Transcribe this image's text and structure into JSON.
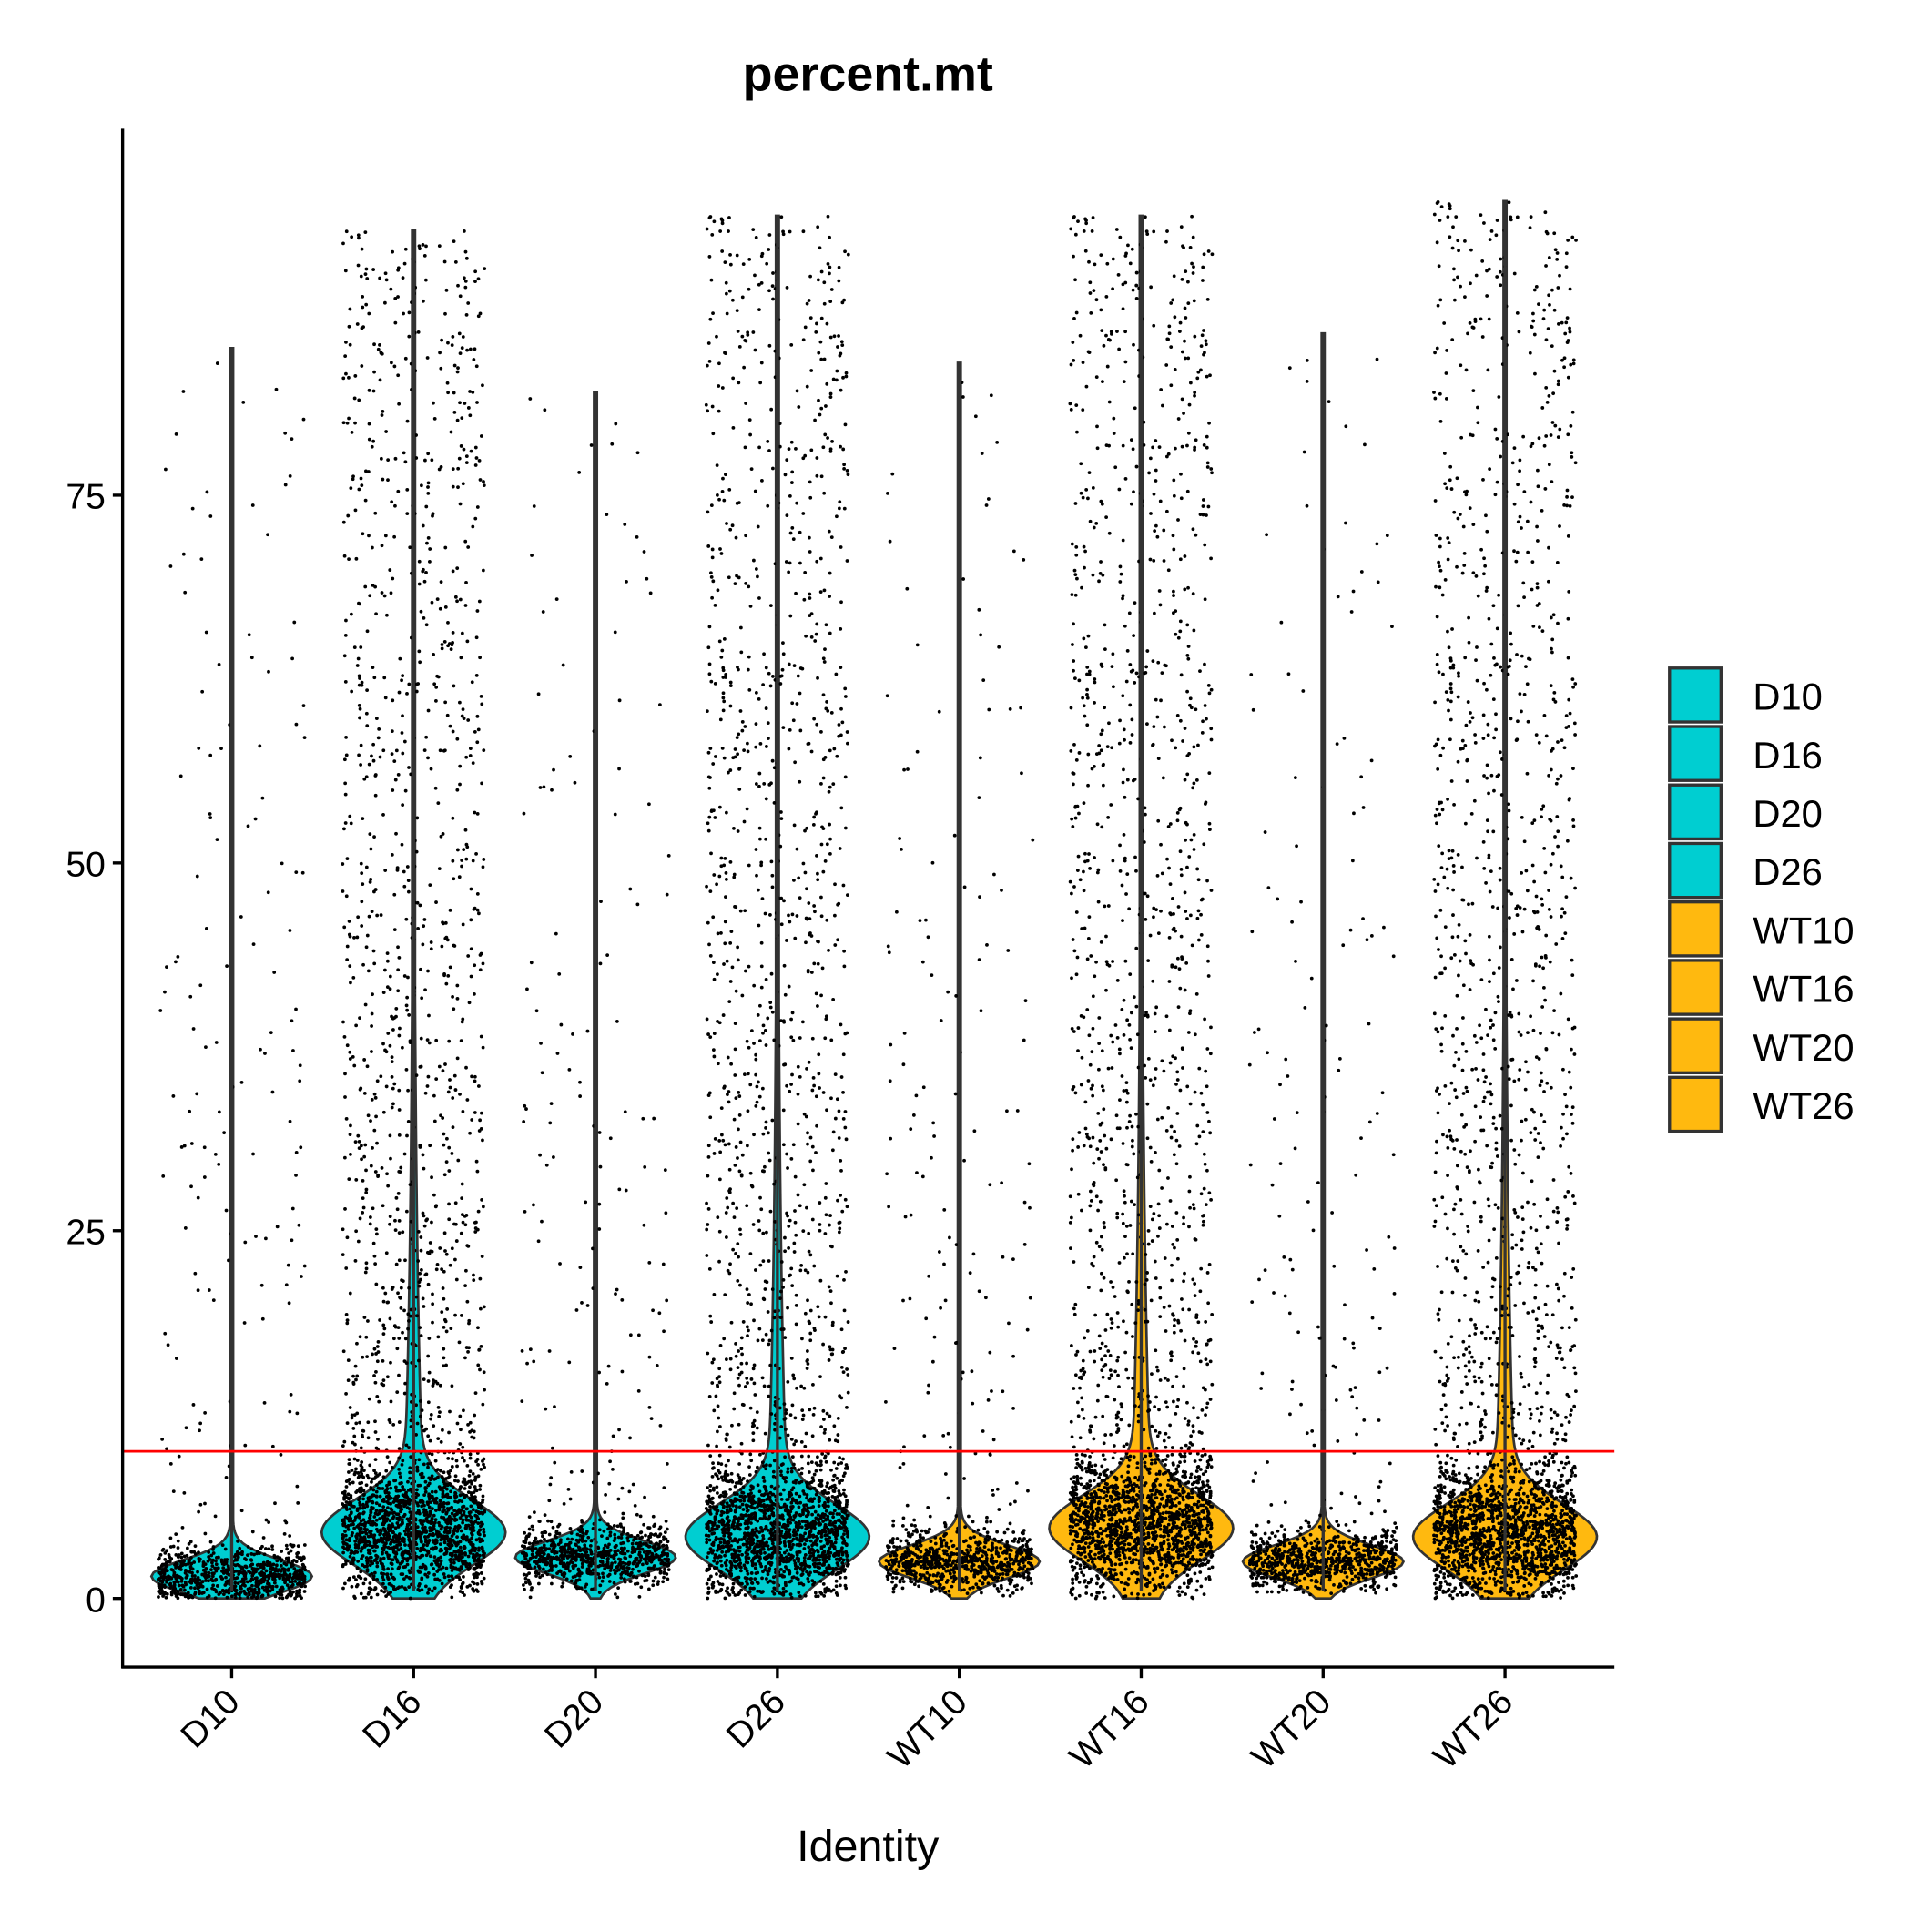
{
  "chart_data": {
    "type": "violin",
    "title": "percent.mt",
    "xlabel": "Identity",
    "ylabel": "",
    "ylim": [
      -4.7,
      100
    ],
    "yticks": [
      0,
      25,
      50,
      75
    ],
    "ytick_labels": [
      "0",
      "25",
      "50",
      "75"
    ],
    "categories": [
      "D10",
      "D16",
      "D20",
      "D26",
      "WT10",
      "WT16",
      "WT20",
      "WT26"
    ],
    "group_color": [
      "#00CED1",
      "#00CED1",
      "#00CED1",
      "#00CED1",
      "#FFB90F",
      "#FFB90F",
      "#FFB90F",
      "#FFB90F"
    ],
    "median": [
      1.5,
      4.5,
      2.8,
      4.2,
      2.5,
      4.8,
      2.5,
      4.2
    ],
    "max": [
      85,
      93,
      82,
      94,
      84,
      94,
      86,
      95
    ],
    "n_points": [
      900,
      2600,
      900,
      2600,
      900,
      2600,
      900,
      2600
    ],
    "high_fraction": [
      0.18,
      0.45,
      0.18,
      0.45,
      0.18,
      0.45,
      0.18,
      0.45
    ],
    "threshold_line": {
      "value": 10,
      "color": "#FF0000"
    },
    "legend": {
      "placement": "right",
      "entries": [
        {
          "label": "D10",
          "color": "#00CED1"
        },
        {
          "label": "D16",
          "color": "#00CED1"
        },
        {
          "label": "D20",
          "color": "#00CED1"
        },
        {
          "label": "D26",
          "color": "#00CED1"
        },
        {
          "label": "WT10",
          "color": "#FFB90F"
        },
        {
          "label": "WT16",
          "color": "#FFB90F"
        },
        {
          "label": "WT20",
          "color": "#FFB90F"
        },
        {
          "label": "WT26",
          "color": "#FFB90F"
        }
      ]
    }
  }
}
